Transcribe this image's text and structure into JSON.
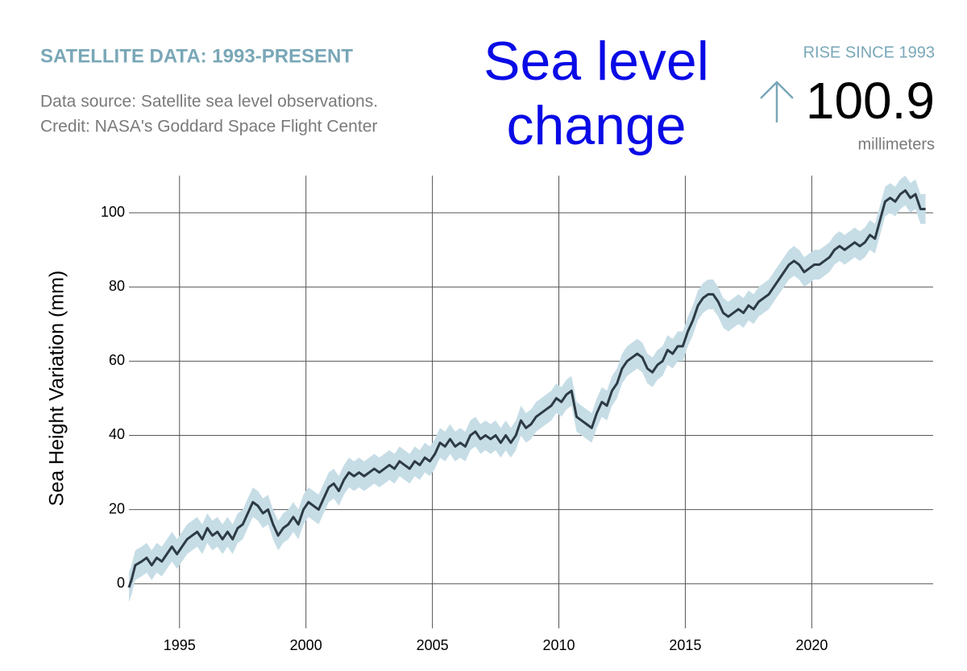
{
  "chart_data": {
    "type": "line",
    "title": "Sea level change",
    "kicker": "SATELLITE DATA: 1993-PRESENT",
    "source_lines": [
      "Data source: Satellite sea level observations.",
      "Credit: NASA's Goddard Space Flight Center"
    ],
    "callout": {
      "label": "RISE SINCE 1993",
      "value": "100.9",
      "unit": "millimeters"
    },
    "y_label": "Sea Height Variation (mm)",
    "xlim": [
      1993,
      2024.8
    ],
    "xticks": [
      1995,
      2000,
      2005,
      2010,
      2015,
      2020
    ],
    "ylim": [
      -12,
      110
    ],
    "yticks": [
      0,
      20,
      40,
      60,
      80,
      100
    ],
    "grid": true,
    "x": [
      1993.0,
      1993.1,
      1993.25,
      1993.5,
      1993.7,
      1993.9,
      1994.1,
      1994.3,
      1994.5,
      1994.7,
      1994.9,
      1995.1,
      1995.3,
      1995.5,
      1995.7,
      1995.9,
      1996.1,
      1996.3,
      1996.5,
      1996.7,
      1996.9,
      1997.1,
      1997.3,
      1997.5,
      1997.7,
      1997.9,
      1998.1,
      1998.3,
      1998.5,
      1998.7,
      1998.9,
      1999.1,
      1999.3,
      1999.5,
      1999.7,
      1999.9,
      2000.1,
      2000.3,
      2000.5,
      2000.7,
      2000.9,
      2001.1,
      2001.3,
      2001.5,
      2001.7,
      2001.9,
      2002.1,
      2002.3,
      2002.5,
      2002.7,
      2002.9,
      2003.1,
      2003.3,
      2003.5,
      2003.7,
      2003.9,
      2004.1,
      2004.3,
      2004.5,
      2004.7,
      2004.9,
      2005.1,
      2005.3,
      2005.5,
      2005.7,
      2005.9,
      2006.1,
      2006.3,
      2006.5,
      2006.7,
      2006.9,
      2007.1,
      2007.3,
      2007.5,
      2007.7,
      2007.9,
      2008.1,
      2008.3,
      2008.5,
      2008.7,
      2008.9,
      2009.1,
      2009.3,
      2009.5,
      2009.7,
      2009.9,
      2010.1,
      2010.3,
      2010.5,
      2010.7,
      2010.9,
      2011.1,
      2011.3,
      2011.5,
      2011.7,
      2011.9,
      2012.1,
      2012.3,
      2012.5,
      2012.7,
      2012.9,
      2013.1,
      2013.3,
      2013.5,
      2013.7,
      2013.9,
      2014.1,
      2014.3,
      2014.5,
      2014.7,
      2014.9,
      2015.1,
      2015.3,
      2015.5,
      2015.7,
      2015.9,
      2016.1,
      2016.3,
      2016.5,
      2016.7,
      2016.9,
      2017.1,
      2017.3,
      2017.5,
      2017.7,
      2017.9,
      2018.1,
      2018.3,
      2018.5,
      2018.7,
      2018.9,
      2019.1,
      2019.3,
      2019.5,
      2019.7,
      2019.9,
      2020.1,
      2020.3,
      2020.5,
      2020.7,
      2020.9,
      2021.1,
      2021.3,
      2021.5,
      2021.7,
      2021.9,
      2022.1,
      2022.3,
      2022.5,
      2022.7,
      2022.9,
      2023.1,
      2023.3,
      2023.5,
      2023.7,
      2023.9,
      2024.1,
      2024.3,
      2024.5
    ],
    "series": [
      {
        "color": "#2d3b45",
        "band_color": "#c6dde6",
        "uncertainty": 4,
        "values": [
          -1,
          1,
          5,
          6,
          7,
          5,
          7,
          6,
          8,
          10,
          8,
          10,
          12,
          13,
          14,
          12,
          15,
          13,
          14,
          12,
          14,
          12,
          15,
          16,
          19,
          22,
          21,
          19,
          20,
          16,
          13,
          15,
          16,
          18,
          16,
          20,
          22,
          21,
          20,
          23,
          26,
          27,
          25,
          28,
          30,
          29,
          30,
          29,
          30,
          31,
          30,
          31,
          32,
          31,
          33,
          32,
          31,
          33,
          32,
          34,
          33,
          35,
          38,
          37,
          39,
          37,
          38,
          37,
          40,
          41,
          39,
          40,
          39,
          40,
          38,
          40,
          38,
          40,
          44,
          42,
          43,
          45,
          46,
          47,
          48,
          50,
          49,
          51,
          52,
          45,
          44,
          43,
          42,
          46,
          49,
          48,
          52,
          54,
          58,
          60,
          61,
          62,
          61,
          58,
          57,
          59,
          60,
          63,
          62,
          64,
          64,
          68,
          71,
          75,
          77,
          78,
          78,
          76,
          73,
          72,
          73,
          74,
          73,
          75,
          74,
          76,
          77,
          78,
          80,
          82,
          84,
          86,
          87,
          86,
          84,
          85,
          86,
          86,
          87,
          88,
          90,
          91,
          90,
          91,
          92,
          91,
          92,
          94,
          93,
          98,
          103,
          104,
          103,
          105,
          106,
          104,
          105,
          101,
          101
        ]
      }
    ]
  }
}
